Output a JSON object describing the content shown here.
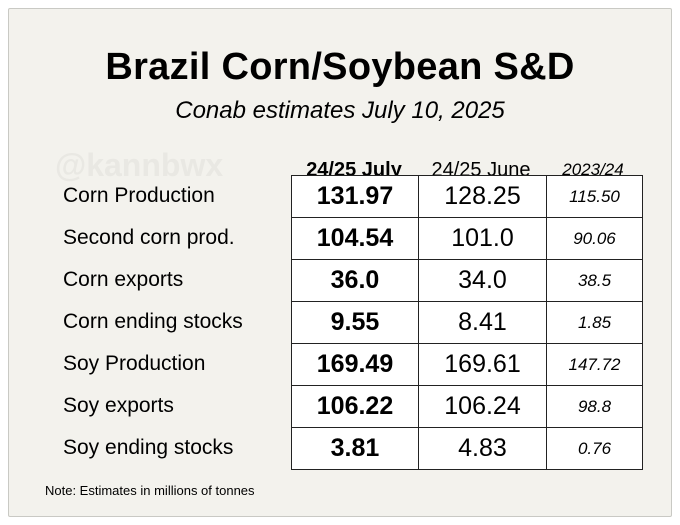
{
  "title": "Brazil Corn/Soybean S&D",
  "subtitle": "Conab estimates July 10, 2025",
  "watermark": "@kannbwx",
  "columns": [
    "24/25 July",
    "24/25 June",
    "2023/24"
  ],
  "rows": [
    {
      "label": "Corn Production",
      "values": [
        "131.97",
        "128.25",
        "115.50"
      ]
    },
    {
      "label": "Second corn prod.",
      "values": [
        "104.54",
        "101.0",
        "90.06"
      ]
    },
    {
      "label": "Corn exports",
      "values": [
        "36.0",
        "34.0",
        "38.5"
      ]
    },
    {
      "label": "Corn ending stocks",
      "values": [
        "9.55",
        "8.41",
        "1.85"
      ]
    },
    {
      "label": "Soy Production",
      "values": [
        "169.49",
        "169.61",
        "147.72"
      ]
    },
    {
      "label": "Soy exports",
      "values": [
        "106.22",
        "106.24",
        "98.8"
      ]
    },
    {
      "label": "Soy ending stocks",
      "values": [
        "3.81",
        "4.83",
        "0.76"
      ]
    }
  ],
  "note": "Note: Estimates in millions of tonnes",
  "colors": {
    "background": "#f3f2ed",
    "cell_background": "#ffffff",
    "text": "#000000",
    "watermark": "#e9e8e3"
  }
}
